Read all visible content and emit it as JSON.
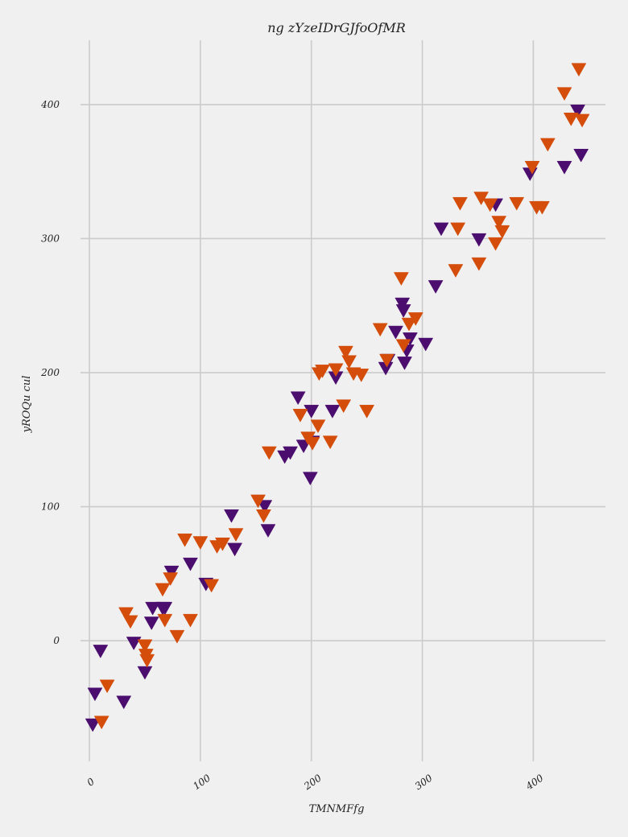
{
  "chart_data": {
    "type": "scatter",
    "title": "ng zYzeIDrGJfoOfMR",
    "xlabel": "TMNMFfg",
    "ylabel": "yROQu cul",
    "xlim": [
      -8,
      465
    ],
    "ylim": [
      -90,
      448
    ],
    "xticks": [
      0,
      100,
      200,
      300,
      400
    ],
    "yticks": [
      0,
      100,
      200,
      300,
      400
    ],
    "grid": true,
    "marker": "triangle-down",
    "series": [
      {
        "color": "#4b0e6e",
        "x": [
          3,
          5,
          10,
          31,
          40,
          50,
          56,
          57,
          66,
          68,
          74,
          91,
          105,
          128,
          131,
          158,
          161,
          176,
          181,
          188,
          193,
          199,
          200,
          201,
          219,
          222,
          267,
          269,
          276,
          282,
          283,
          284,
          286,
          289,
          303,
          312,
          317,
          351,
          366,
          397,
          428,
          440,
          443
        ],
        "y": [
          -63,
          -40,
          -8,
          -46,
          -2,
          -24,
          13,
          24,
          24,
          24,
          51,
          57,
          42,
          93,
          68,
          100,
          82,
          137,
          140,
          181,
          145,
          121,
          171,
          148,
          171,
          196,
          203,
          209,
          230,
          251,
          246,
          207,
          216,
          225,
          221,
          264,
          307,
          299,
          325,
          348,
          353,
          395,
          362
        ]
      },
      {
        "color": "#d44d0a",
        "x": [
          11,
          16,
          33,
          37,
          50,
          51,
          52,
          66,
          68,
          73,
          79,
          86,
          91,
          100,
          110,
          115,
          120,
          132,
          152,
          157,
          162,
          190,
          197,
          201,
          206,
          207,
          210,
          217,
          222,
          229,
          231,
          234,
          238,
          245,
          250,
          262,
          268,
          281,
          283,
          288,
          294,
          330,
          332,
          334,
          351,
          353,
          361,
          366,
          369,
          372,
          385,
          399,
          403,
          408,
          413,
          428,
          434,
          441,
          444
        ],
        "y": [
          -61,
          -34,
          20,
          14,
          -4,
          -11,
          -15,
          38,
          15,
          46,
          3,
          75,
          15,
          73,
          41,
          70,
          72,
          79,
          104,
          93,
          140,
          168,
          151,
          147,
          160,
          199,
          201,
          148,
          202,
          175,
          215,
          208,
          199,
          198,
          171,
          232,
          209,
          270,
          220,
          236,
          240,
          276,
          307,
          326,
          281,
          330,
          325,
          296,
          312,
          305,
          326,
          353,
          323,
          323,
          370,
          408,
          389,
          426,
          388
        ]
      }
    ]
  }
}
